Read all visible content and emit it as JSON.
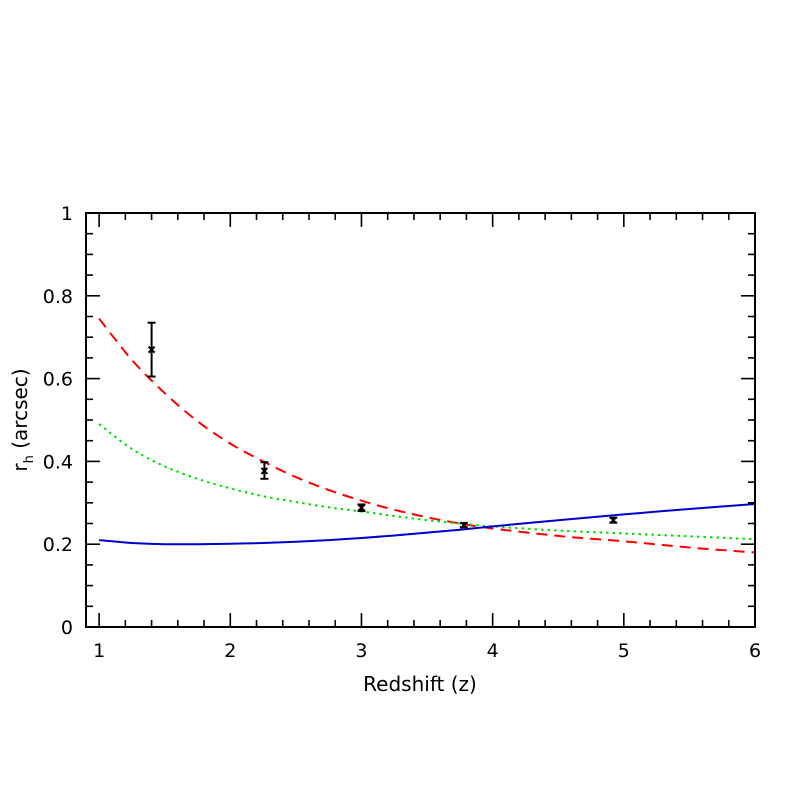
{
  "chart_data": {
    "type": "line",
    "title": "",
    "xlabel": "Redshift (z)",
    "ylabel": {
      "main": "r",
      "sub": "h",
      "rest": " (arcsec)"
    },
    "xlim": [
      0.9,
      6.0
    ],
    "ylim": [
      0,
      1
    ],
    "xticks": [
      1,
      2,
      3,
      4,
      5,
      6
    ],
    "xtick_labels": [
      "1",
      "2",
      "3",
      "4",
      "5",
      "6"
    ],
    "yticks": [
      0,
      0.2,
      0.4,
      0.6,
      0.8,
      1
    ],
    "ytick_labels": [
      "0",
      "0.2",
      "0.4",
      "0.6",
      "0.8",
      "1"
    ],
    "x_minor_step": 0.2,
    "y_minor_step": 0.05,
    "grid": false,
    "legend": "none",
    "series": [
      {
        "style": "dashed",
        "color": "#ff0000",
        "x": [
          1.0,
          1.25,
          1.5,
          1.75,
          2.0,
          2.25,
          2.5,
          2.75,
          3.0,
          3.25,
          3.5,
          3.75,
          4.0,
          4.5,
          5.0,
          5.5,
          6.0
        ],
        "y": [
          0.745,
          0.645,
          0.565,
          0.497,
          0.443,
          0.4,
          0.362,
          0.331,
          0.305,
          0.283,
          0.265,
          0.25,
          0.238,
          0.22,
          0.207,
          0.192,
          0.18
        ]
      },
      {
        "style": "dotted",
        "color": "#00dd00",
        "x": [
          1.0,
          1.25,
          1.5,
          1.75,
          2.0,
          2.25,
          2.5,
          2.75,
          3.0,
          3.25,
          3.5,
          3.75,
          4.0,
          4.5,
          5.0,
          5.5,
          6.0
        ],
        "y": [
          0.49,
          0.43,
          0.388,
          0.358,
          0.335,
          0.316,
          0.302,
          0.289,
          0.279,
          0.268,
          0.258,
          0.25,
          0.243,
          0.233,
          0.226,
          0.219,
          0.212
        ]
      },
      {
        "style": "solid",
        "color": "#0000cc",
        "x": [
          1.0,
          1.25,
          1.5,
          1.75,
          2.0,
          2.25,
          2.5,
          2.75,
          3.0,
          3.25,
          3.5,
          3.75,
          4.0,
          4.5,
          5.0,
          5.5,
          6.0
        ],
        "y": [
          0.21,
          0.203,
          0.2,
          0.2,
          0.201,
          0.203,
          0.206,
          0.21,
          0.215,
          0.221,
          0.228,
          0.235,
          0.243,
          0.258,
          0.272,
          0.285,
          0.297
        ]
      }
    ],
    "points": [
      {
        "x": 1.4,
        "y": 0.67,
        "low": 0.605,
        "high": 0.735
      },
      {
        "x": 2.26,
        "y": 0.377,
        "low": 0.358,
        "high": 0.398
      },
      {
        "x": 3.0,
        "y": 0.288,
        "low": 0.28,
        "high": 0.296
      },
      {
        "x": 3.78,
        "y": 0.246,
        "low": 0.241,
        "high": 0.251
      },
      {
        "x": 4.92,
        "y": 0.258,
        "low": 0.252,
        "high": 0.264
      }
    ]
  }
}
